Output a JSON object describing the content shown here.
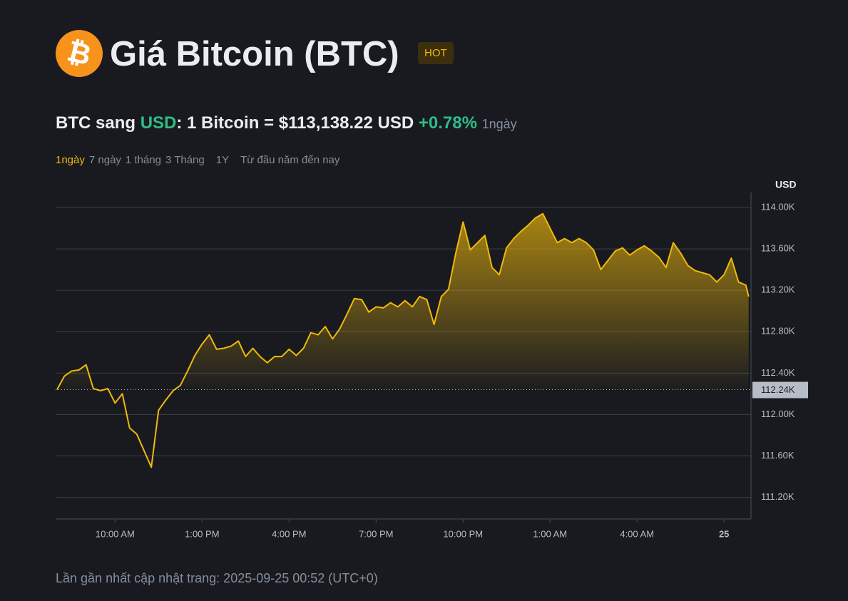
{
  "header": {
    "icon": "₿",
    "title": "Giá Bitcoin (BTC)",
    "badge": "HOT"
  },
  "price": {
    "prefix": "BTC sang",
    "currency": "USD",
    "equation": ": 1 Bitcoin = $113,138.22 USD",
    "change": "+0.78%",
    "period": "1ngày"
  },
  "tabs": [
    "1ngày",
    "7 ngày",
    "1 tháng",
    "3 Tháng",
    "1Y",
    "Từ đầu năm đến nay"
  ],
  "footer": "Lần gần nhất cập nhật trang: 2025-09-25 00:52 (UTC+0)",
  "chart_data": {
    "type": "area",
    "y_unit": "USD",
    "color": "#f0b90b",
    "x": [
      8,
      8.25,
      8.5,
      8.75,
      9,
      9.25,
      9.5,
      9.75,
      10,
      10.25,
      10.5,
      10.75,
      11,
      11.25,
      11.5,
      11.75,
      12,
      12.25,
      12.5,
      12.75,
      13,
      13.25,
      13.5,
      13.75,
      14,
      14.25,
      14.5,
      14.75,
      15,
      15.25,
      15.5,
      15.75,
      16,
      16.25,
      16.5,
      16.75,
      17,
      17.25,
      17.5,
      17.75,
      18,
      18.25,
      18.5,
      18.75,
      19,
      19.25,
      19.5,
      19.75,
      20,
      20.25,
      20.5,
      20.75,
      21,
      21.25,
      21.5,
      21.75,
      22,
      22.25,
      22.5,
      22.75,
      23,
      23.25,
      23.5,
      23.75,
      24,
      24.25,
      24.5,
      24.75,
      25,
      25.25,
      25.5,
      25.75,
      26,
      26.25,
      26.5,
      26.75,
      27,
      27.25,
      27.5,
      27.75,
      28,
      28.25,
      28.5,
      28.75,
      29,
      29.25,
      29.5,
      29.75,
      30,
      30.25,
      30.5,
      30.75,
      31,
      31.25,
      31.5,
      31.75,
      31.85
    ],
    "values": [
      112240,
      112370,
      112420,
      112430,
      112480,
      112250,
      112230,
      112250,
      112110,
      112200,
      111870,
      111810,
      111650,
      111490,
      112040,
      112140,
      112230,
      112280,
      112420,
      112570,
      112680,
      112770,
      112630,
      112640,
      112660,
      112710,
      112560,
      112640,
      112560,
      112500,
      112560,
      112560,
      112630,
      112570,
      112640,
      112790,
      112770,
      112850,
      112730,
      112830,
      112970,
      113120,
      113110,
      112990,
      113040,
      113030,
      113080,
      113040,
      113100,
      113040,
      113140,
      113110,
      112870,
      113140,
      113210,
      113560,
      113860,
      113590,
      113660,
      113730,
      113420,
      113350,
      113610,
      113700,
      113770,
      113830,
      113900,
      113940,
      113800,
      113660,
      113700,
      113660,
      113700,
      113660,
      113590,
      113400,
      113490,
      113580,
      113610,
      113540,
      113590,
      113630,
      113580,
      113520,
      113420,
      113660,
      113560,
      113440,
      113390,
      113370,
      113350,
      113280,
      113350,
      113510,
      113280,
      113250,
      113140
    ],
    "xlim": [
      7.95,
      31.93
    ],
    "xticks": [
      {
        "value": 10,
        "label": "10:00 AM"
      },
      {
        "value": 13,
        "label": "1:00 PM"
      },
      {
        "value": 16,
        "label": "4:00 PM"
      },
      {
        "value": 19,
        "label": "7:00 PM"
      },
      {
        "value": 22,
        "label": "10:00 PM"
      },
      {
        "value": 25,
        "label": "1:00 AM"
      },
      {
        "value": 28,
        "label": "4:00 AM"
      },
      {
        "value": 31,
        "label": "25"
      }
    ],
    "ylim": [
      110990,
      114145
    ],
    "yticks": [
      {
        "value": 111200,
        "label": "111.20K"
      },
      {
        "value": 111600,
        "label": "111.60K"
      },
      {
        "value": 112000,
        "label": "112.00K"
      },
      {
        "value": 112400,
        "label": "112.40K"
      },
      {
        "value": 112800,
        "label": "112.80K"
      },
      {
        "value": 113200,
        "label": "113.20K"
      },
      {
        "value": 113600,
        "label": "113.60K"
      },
      {
        "value": 114000,
        "label": "114.00K"
      }
    ],
    "baseline": {
      "value": 112240,
      "label": "112.24K"
    },
    "grid": true
  }
}
